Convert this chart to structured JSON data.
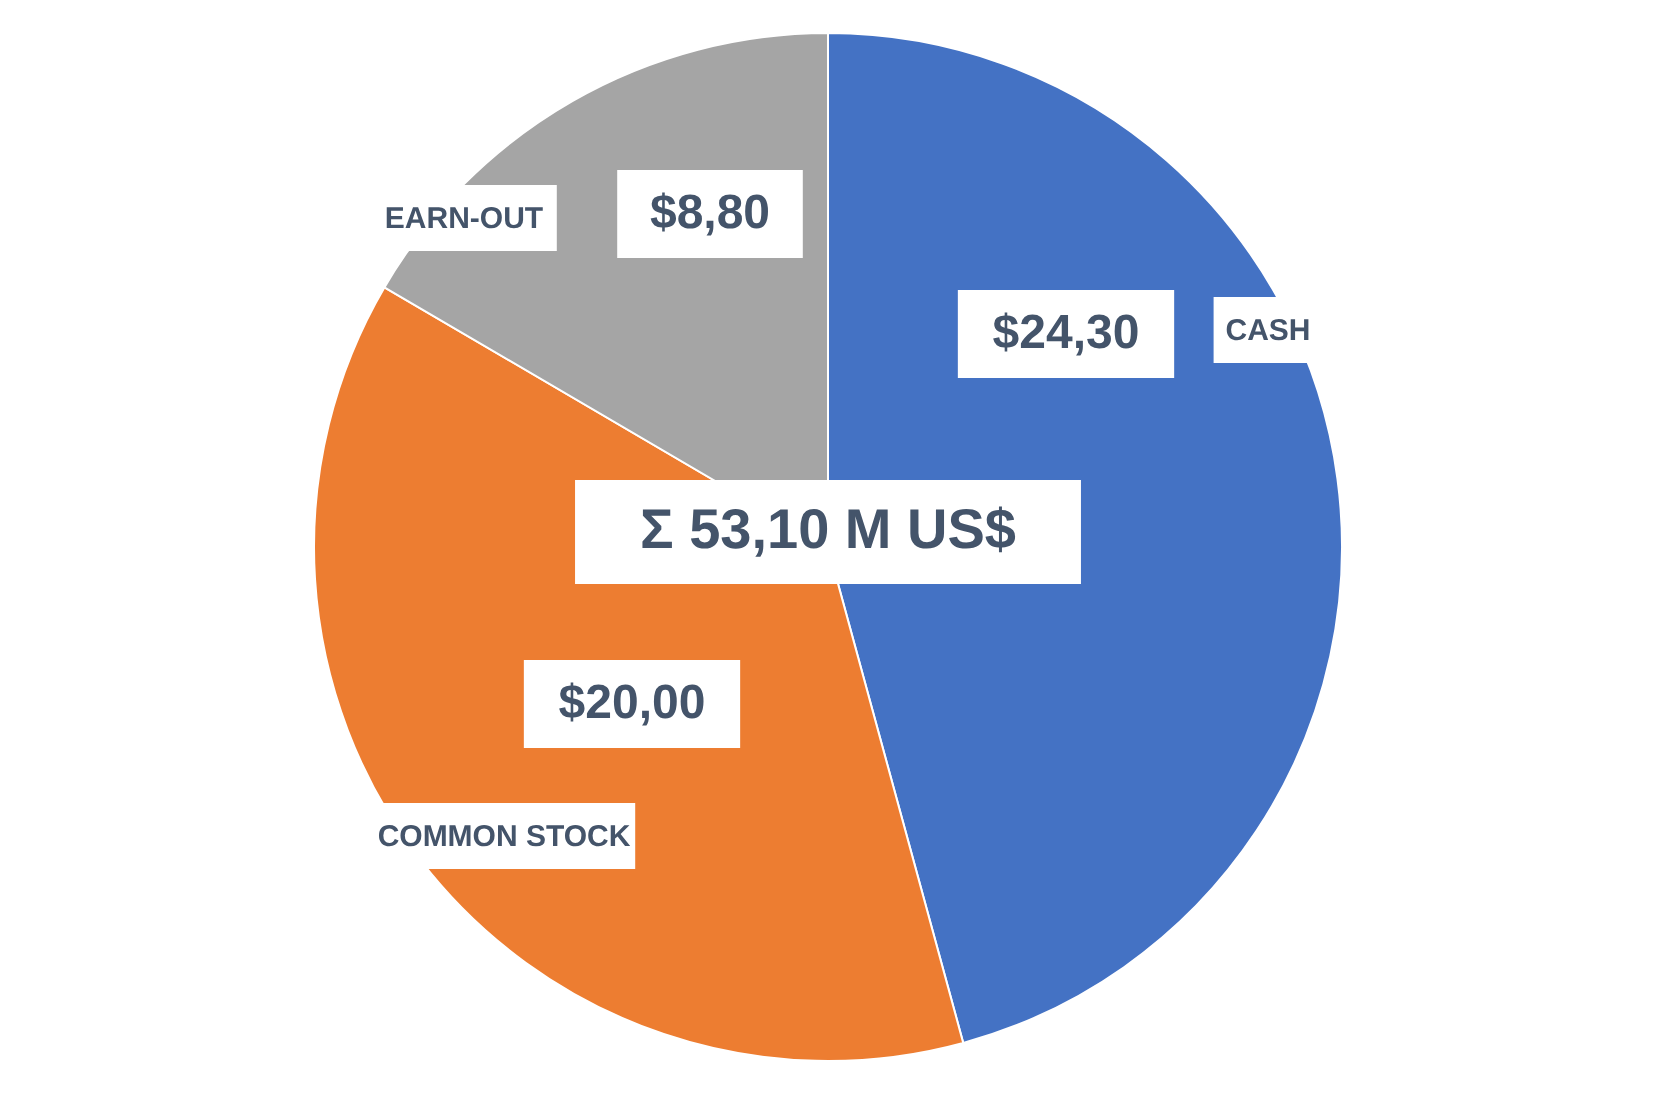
{
  "chart_data": {
    "type": "pie",
    "categories": [
      "CASH",
      "COMMON STOCK",
      "EARN-OUT"
    ],
    "values": [
      24.3,
      20.0,
      8.8
    ],
    "colors": [
      "#4472c4",
      "#ed7d31",
      "#a5a5a5"
    ],
    "value_labels": [
      "$24,30",
      "$20,00",
      "$8,80"
    ],
    "annotations": [
      "Σ 53,10 M US$"
    ]
  }
}
